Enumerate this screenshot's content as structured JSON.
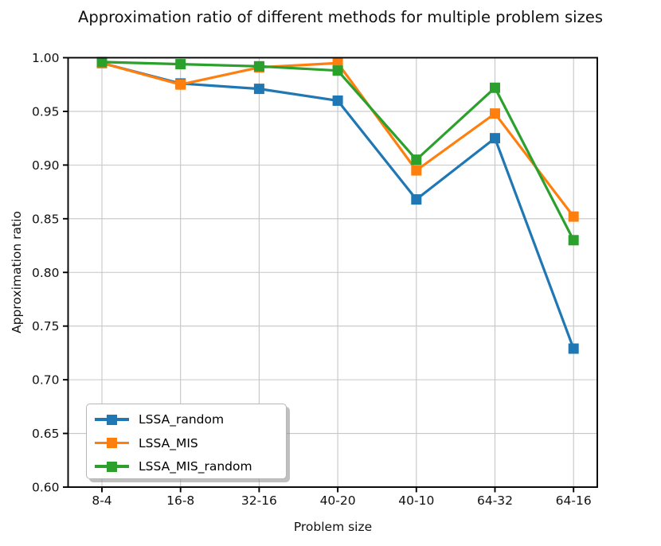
{
  "chart_data": {
    "type": "line",
    "title": "Approximation ratio of different methods for multiple problem sizes",
    "xlabel": "Problem size",
    "ylabel": "Approximation ratio",
    "categories": [
      "8-4",
      "16-8",
      "32-16",
      "40-20",
      "40-10",
      "64-32",
      "64-16"
    ],
    "y_tick_labels": [
      "1.00",
      "0.95",
      "0.90",
      "0.85",
      "0.80",
      "0.75",
      "0.70",
      "0.65",
      "0.60"
    ],
    "y_ticks": [
      1.0,
      0.95,
      0.9,
      0.85,
      0.8,
      0.75,
      0.7,
      0.65,
      0.6
    ],
    "ylim": [
      0.6,
      1.0
    ],
    "grid": true,
    "grid_color": "#c6c6c6",
    "axis_color": "#000000",
    "marker": "square",
    "legend_position": "lower left",
    "series": [
      {
        "name": "LSSA_random",
        "color": "#1f77b4",
        "values": [
          0.995,
          0.976,
          0.971,
          0.96,
          0.868,
          0.925,
          0.729
        ]
      },
      {
        "name": "LSSA_MIS",
        "color": "#ff7f0e",
        "values": [
          0.995,
          0.975,
          0.991,
          0.995,
          0.895,
          0.948,
          0.852
        ]
      },
      {
        "name": "LSSA_MIS_random",
        "color": "#2ca02c",
        "values": [
          0.996,
          0.994,
          0.992,
          0.988,
          0.905,
          0.972,
          0.83
        ]
      }
    ]
  }
}
